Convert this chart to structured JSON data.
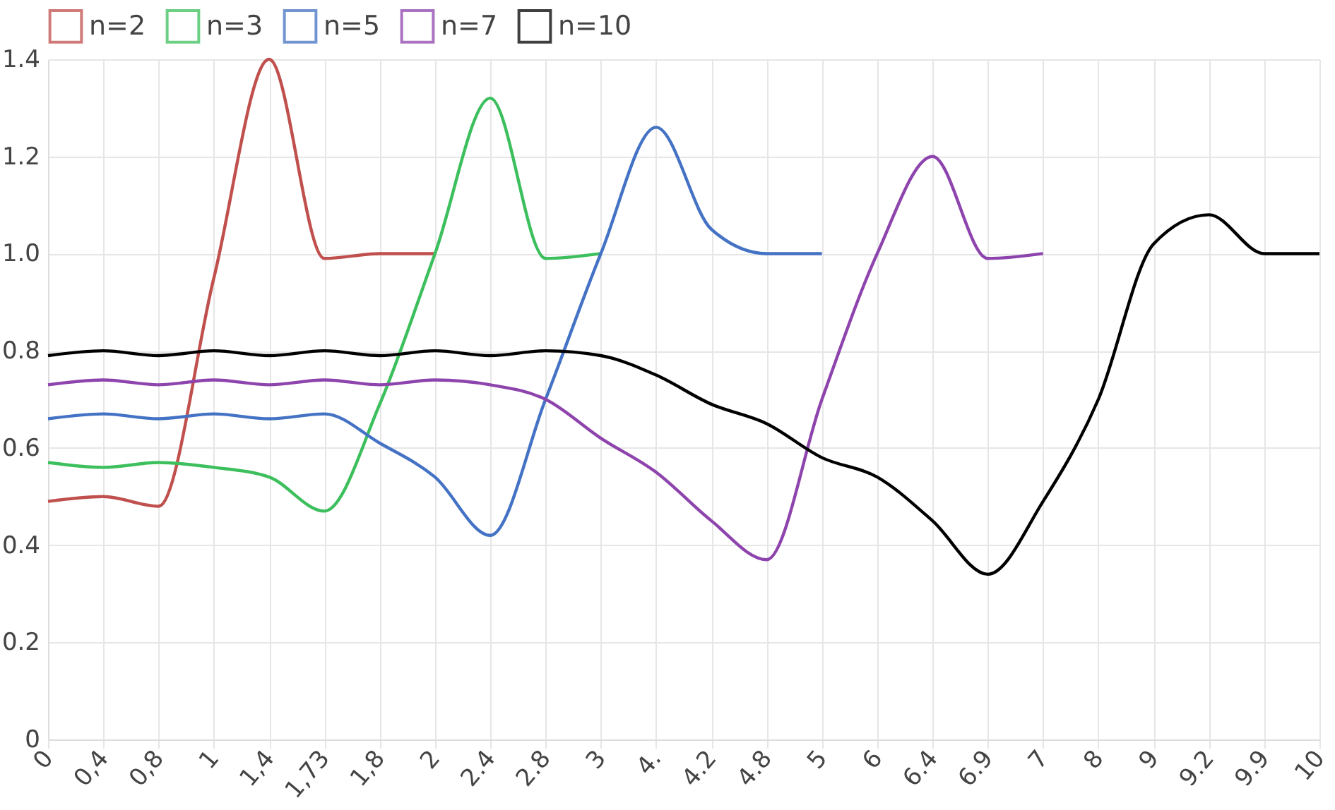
{
  "chart_data": {
    "type": "line",
    "categories": [
      "0",
      "0,4",
      "0,8",
      "1",
      "1,4",
      "1,73",
      "1,8",
      "2",
      "2.4",
      "2.8",
      "3",
      "4.",
      "4.2",
      "4.8",
      "5",
      "6",
      "6.4",
      "6.9",
      "7",
      "8",
      "9",
      "9.2",
      "9.9",
      "10"
    ],
    "series": [
      {
        "name": "n=2",
        "color": "#c0504d",
        "values": [
          0.49,
          0.5,
          0.48,
          0.95,
          1.4,
          0.99,
          1.0,
          1.0,
          null,
          null,
          null,
          null,
          null,
          null,
          null,
          null,
          null,
          null,
          null,
          null,
          null,
          null,
          null,
          null
        ]
      },
      {
        "name": "n=3",
        "color": "#3cbf5c",
        "values": [
          0.57,
          0.56,
          0.57,
          0.56,
          0.54,
          0.47,
          0.69,
          1.0,
          1.32,
          0.99,
          1.0,
          null,
          null,
          null,
          null,
          null,
          null,
          null,
          null,
          null,
          null,
          null,
          null,
          null
        ]
      },
      {
        "name": "n=5",
        "color": "#4472c4",
        "values": [
          0.66,
          0.67,
          0.66,
          0.67,
          0.66,
          0.67,
          0.61,
          0.54,
          0.42,
          0.7,
          1.0,
          1.26,
          1.05,
          1.0,
          1.0,
          null,
          null,
          null,
          null,
          null,
          null,
          null,
          null,
          null
        ]
      },
      {
        "name": "n=7",
        "color": "#8e44ad",
        "values": [
          0.73,
          0.74,
          0.73,
          0.74,
          0.73,
          0.74,
          0.73,
          0.74,
          0.73,
          0.7,
          0.62,
          0.55,
          0.45,
          0.37,
          0.7,
          1.0,
          1.2,
          0.99,
          1.0,
          null,
          null,
          null,
          null,
          null
        ]
      },
      {
        "name": "n=10",
        "color": "#000000",
        "values": [
          0.79,
          0.8,
          0.79,
          0.8,
          0.79,
          0.8,
          0.79,
          0.8,
          0.79,
          0.8,
          0.79,
          0.75,
          0.69,
          0.65,
          0.58,
          0.54,
          0.45,
          0.34,
          0.49,
          0.7,
          1.02,
          1.08,
          1.0,
          1.0
        ]
      }
    ],
    "ylim": [
      0,
      1.4
    ],
    "yticks": [
      0,
      0.2,
      0.4,
      0.6,
      0.8,
      {
        "value": 1,
        "label": "1.0"
      },
      1.2,
      1.4
    ],
    "grid": true,
    "legend": "top",
    "marker": "none",
    "line_style": "solid"
  }
}
